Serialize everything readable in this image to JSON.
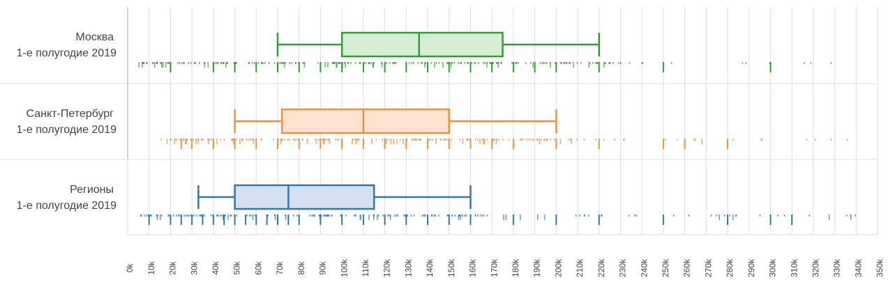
{
  "chart_data": {
    "type": "boxplot",
    "orientation": "horizontal",
    "xlim": [
      0,
      350000
    ],
    "tick_step": 10000,
    "tick_labels": [
      "0k",
      "10k",
      "20k",
      "30k",
      "40k",
      "50k",
      "60k",
      "70k",
      "80k",
      "90k",
      "100k",
      "110k",
      "120k",
      "130k",
      "140k",
      "150k",
      "160k",
      "170k",
      "180k",
      "190k",
      "200k",
      "210k",
      "220k",
      "230k",
      "240k",
      "250k",
      "260k",
      "270k",
      "280k",
      "290k",
      "300k",
      "310k",
      "320k",
      "330k",
      "340k",
      "350k"
    ],
    "grid": true,
    "categories": [
      {
        "line1": "Москва",
        "line2": "1-е полугодие 2019",
        "color": "#2ca02c",
        "fill": "#d6efd4",
        "whisker_low": 70000,
        "q1": 100000,
        "median": 136000,
        "q3": 175000,
        "whisker_high": 220000,
        "rug_range": [
          5000,
          341000
        ],
        "rug_major": [
          20000,
          40000,
          50000,
          60000,
          70000,
          80000,
          90000,
          100000,
          110000,
          120000,
          130000,
          140000,
          150000,
          160000,
          170000,
          180000,
          190000,
          200000,
          220000,
          250000,
          300000
        ]
      },
      {
        "line1": "Санкт-Петербург",
        "line2": "1-е полугодие 2019",
        "color": "#f28e3c",
        "fill": "#fde2cf",
        "whisker_low": 50000,
        "q1": 72000,
        "median": 110000,
        "q3": 150000,
        "whisker_high": 200000,
        "rug_range": [
          13000,
          341000
        ],
        "rug_major": [
          25000,
          30000,
          40000,
          50000,
          60000,
          70000,
          80000,
          90000,
          100000,
          110000,
          120000,
          130000,
          140000,
          150000,
          160000,
          170000,
          180000,
          200000,
          220000,
          250000,
          260000,
          280000
        ]
      },
      {
        "line1": "Регионы",
        "line2": "1-е полугодие 2019",
        "color": "#2f77b4",
        "fill": "#d4e2f0",
        "whisker_low": 33000,
        "q1": 50000,
        "median": 75000,
        "q3": 115000,
        "whisker_high": 160000,
        "rug_range": [
          5000,
          341000
        ],
        "rug_major": [
          10000,
          20000,
          25000,
          30000,
          35000,
          40000,
          45000,
          50000,
          55000,
          60000,
          65000,
          70000,
          75000,
          80000,
          90000,
          100000,
          110000,
          120000,
          130000,
          140000,
          150000,
          160000,
          180000,
          200000,
          220000,
          250000,
          280000,
          300000,
          310000
        ]
      }
    ]
  }
}
